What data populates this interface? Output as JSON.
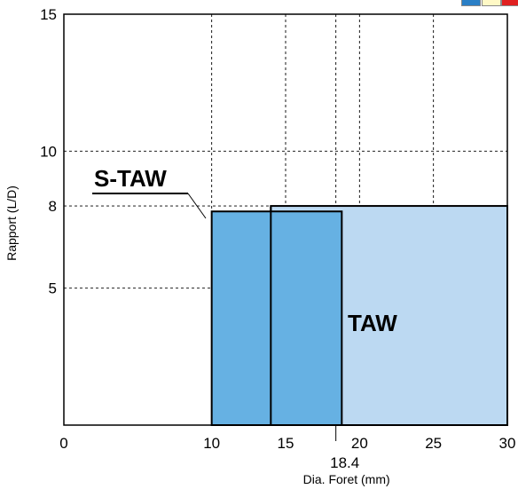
{
  "chart_data": {
    "type": "area",
    "title": "",
    "xlabel": "Dia. Foret (mm)",
    "ylabel": "Rapport (L/D)",
    "xlim": [
      0,
      30
    ],
    "ylim": [
      0,
      15
    ],
    "x_ticks": [
      0,
      10,
      15,
      20,
      25,
      30
    ],
    "y_ticks": [
      5,
      8,
      10,
      15
    ],
    "extra_x_tick": 18.4,
    "grid": true,
    "series": [
      {
        "name": "TAW",
        "x_range": [
          14,
          30
        ],
        "y_max": 8,
        "color": "#bcd9f2"
      },
      {
        "name": "S-TAW",
        "x_range": [
          10,
          18.8
        ],
        "y_max": 7.8,
        "color": "#66b1e3"
      }
    ]
  },
  "legend_swatches": [
    "#2a7fc6",
    "#fff9c6",
    "#e02020"
  ]
}
